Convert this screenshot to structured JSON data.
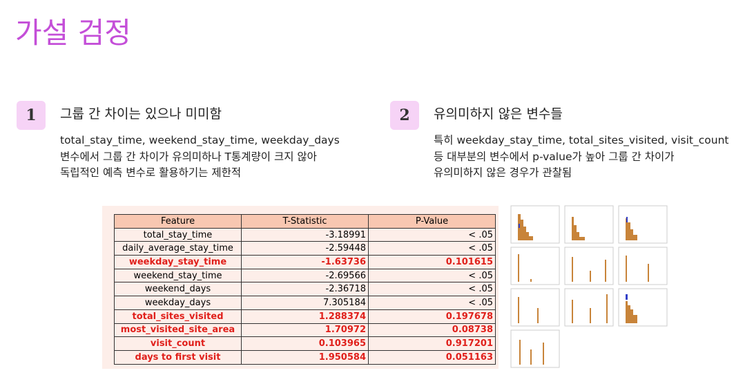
{
  "title": "가설 검정",
  "points": [
    {
      "number": "1",
      "heading": "그룹 간 차이는 있으나 미미함",
      "body": [
        "total_stay_time, weekend_stay_time, weekday_days",
        "변수에서 그룹 간 차이가 유의미하나 T통계량이 크지 않아",
        "독립적인 예측 변수로 활용하기는 제한적"
      ]
    },
    {
      "number": "2",
      "heading": "유의미하지 않은 변수들",
      "body": [
        "특히 weekday_stay_time, total_sites_visited, visit_count",
        "등 대부분의 변수에서 p-value가 높아 그룹 간 차이가",
        "유의미하지 않은 경우가 관찰됨"
      ]
    }
  ],
  "table": {
    "header": [
      "Feature",
      "T-Statistic",
      "P-Value"
    ],
    "highlight_color": "#e0201b",
    "rows": [
      {
        "cells": [
          "total_stay_time",
          "-3.18991",
          "< .05"
        ],
        "highlight": false
      },
      {
        "cells": [
          "daily_average_stay_time",
          "-2.59448",
          "< .05"
        ],
        "highlight": false
      },
      {
        "cells": [
          "weekday_stay_time",
          "-1.63736",
          "0.101615"
        ],
        "highlight": true
      },
      {
        "cells": [
          "weekend_stay_time",
          "-2.69566",
          "< .05"
        ],
        "highlight": false
      },
      {
        "cells": [
          "weekend_days",
          "-2.36718",
          "< .05"
        ],
        "highlight": false
      },
      {
        "cells": [
          "weekday_days",
          "7.305184",
          "< .05"
        ],
        "highlight": false
      },
      {
        "cells": [
          "total_sites_visited",
          "1.288374",
          "0.197678"
        ],
        "highlight": true
      },
      {
        "cells": [
          "most_visited_site_area",
          "1.70972",
          "0.08738"
        ],
        "highlight": true
      },
      {
        "cells": [
          "visit_count",
          "0.103965",
          "0.917201"
        ],
        "highlight": true
      },
      {
        "cells": [
          "days to first visit",
          "1.950584",
          "0.051163"
        ],
        "highlight": true
      }
    ]
  }
}
